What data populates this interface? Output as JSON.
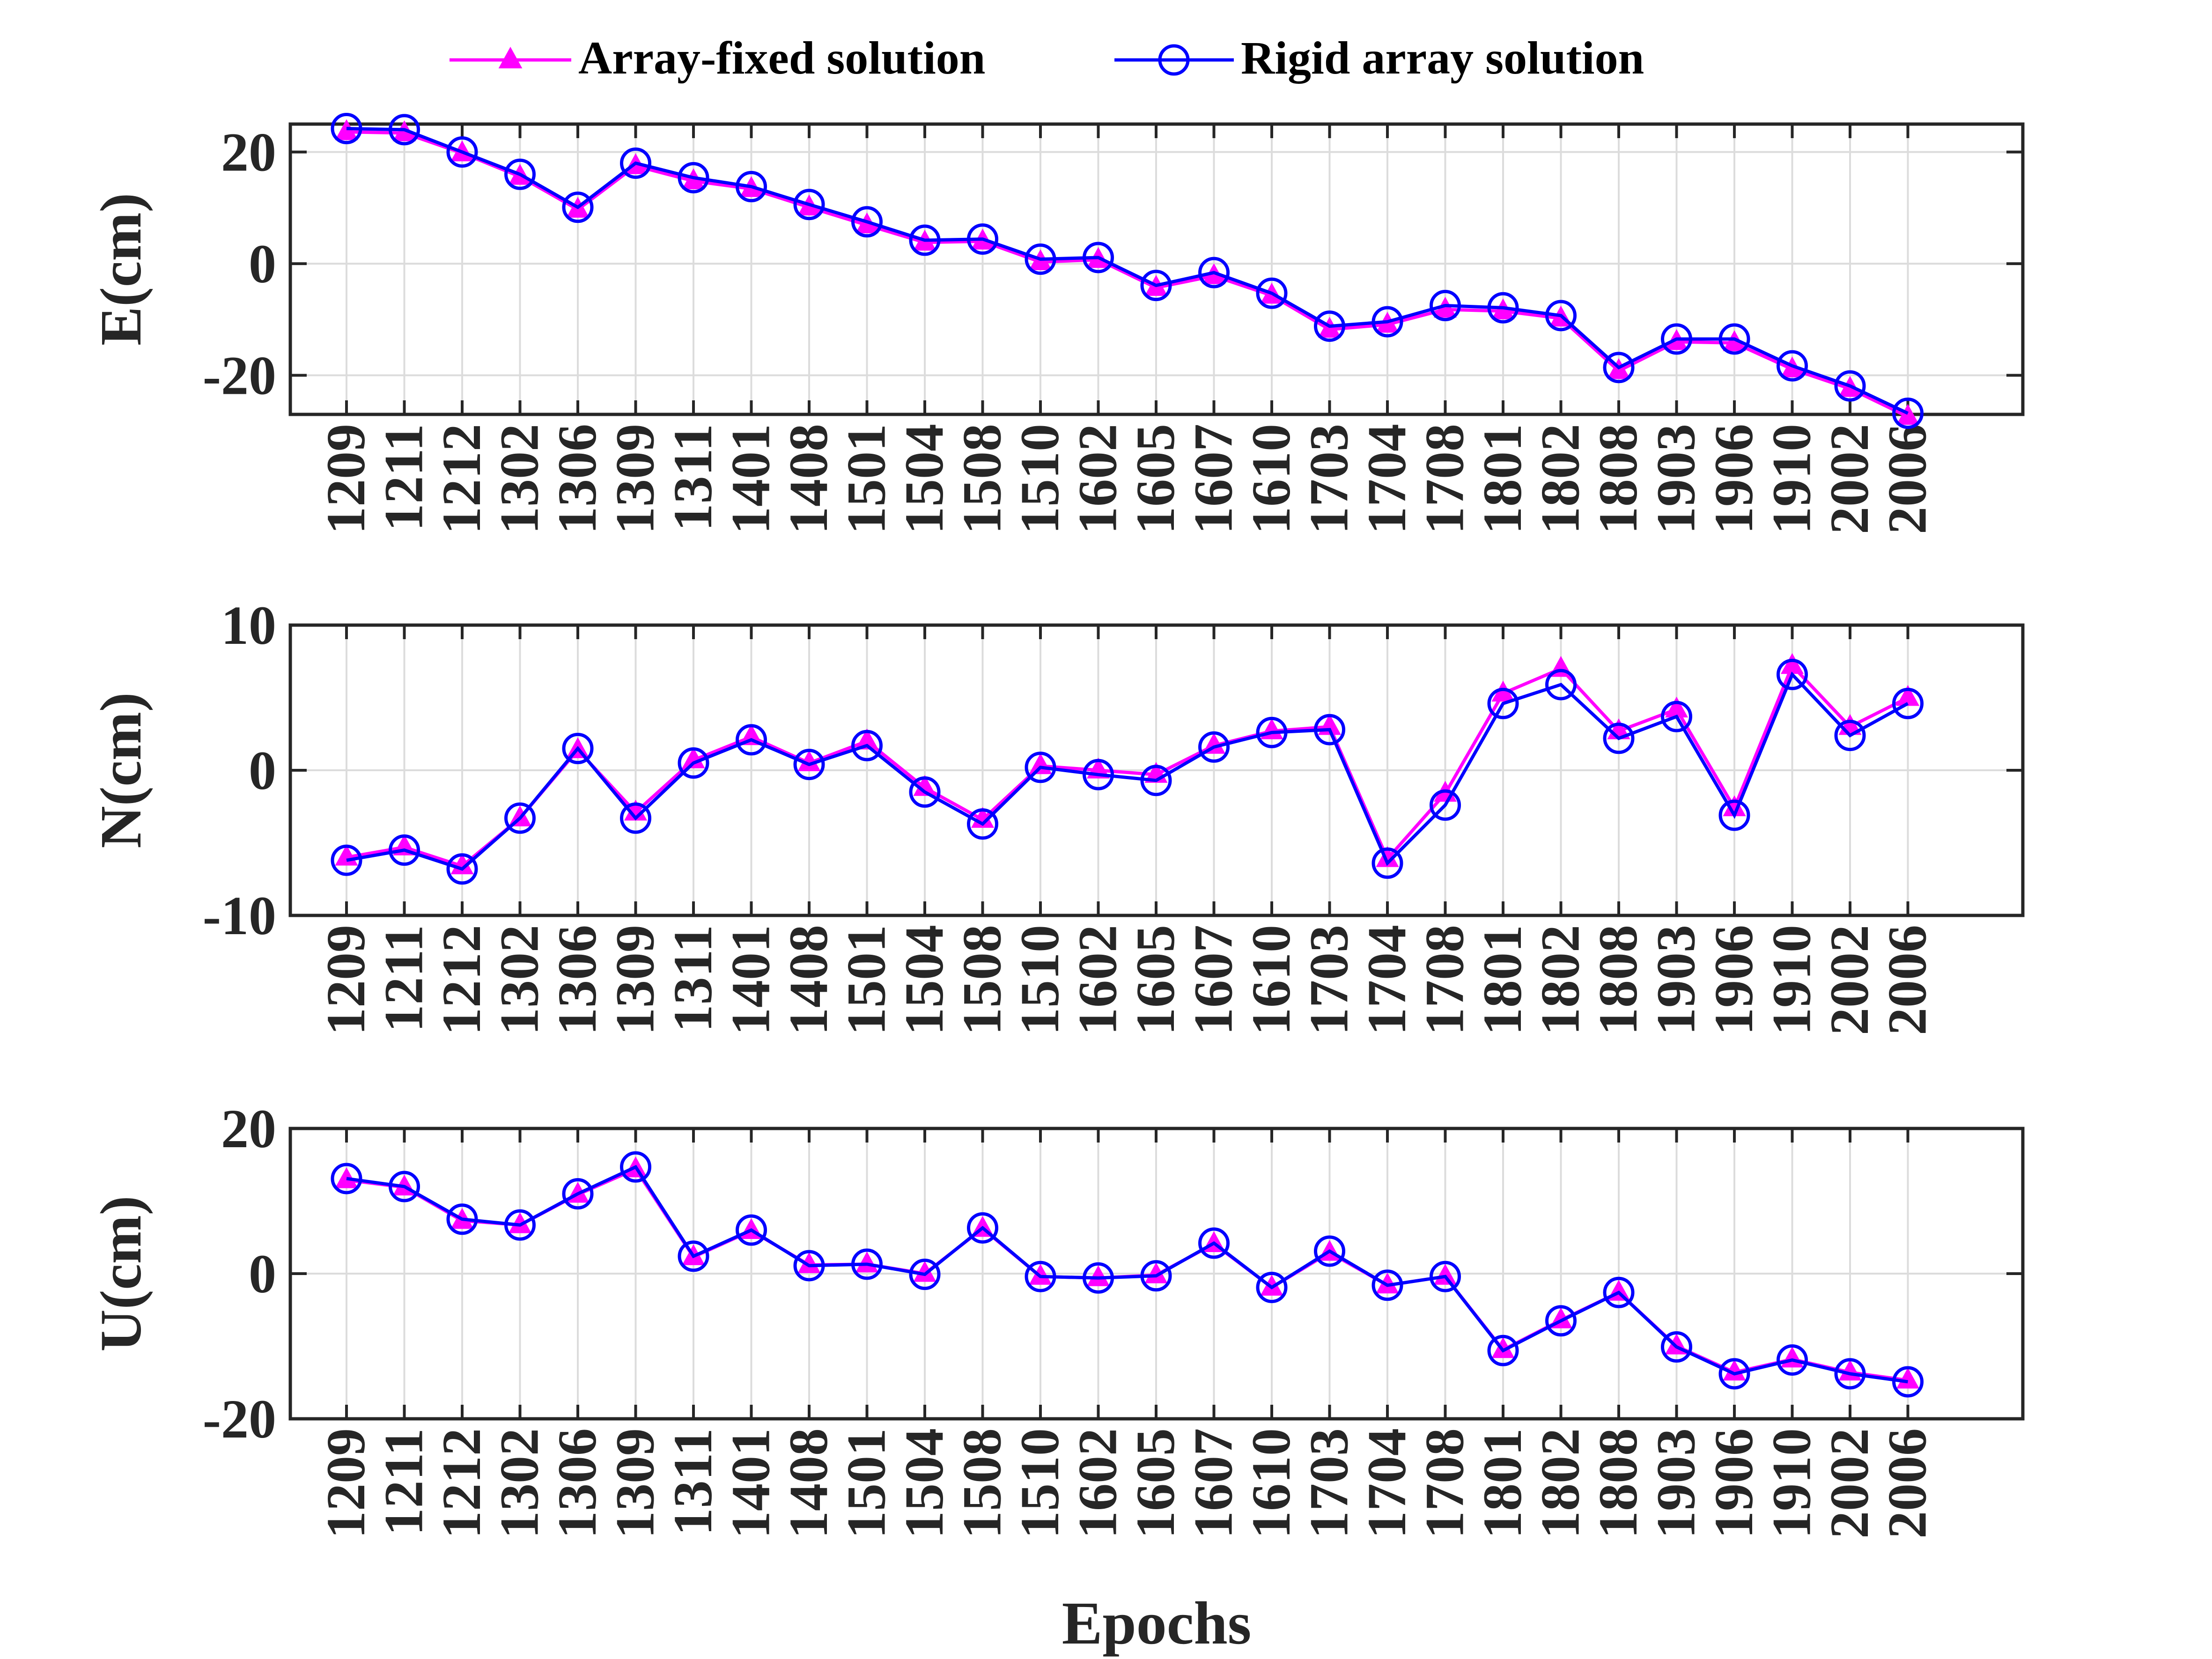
{
  "legend": {
    "array_fixed_label": "Array-fixed solution",
    "rigid_array_label": "Rigid array solution"
  },
  "colors": {
    "array_fixed": "#ff00ff",
    "rigid_array": "#0000ff",
    "axes": "#262626",
    "grid": "#dcdcdc"
  },
  "chart_data": [
    {
      "type": "line",
      "xlabel": "",
      "ylabel": "E(cm)",
      "categories": [
        "1209",
        "1211",
        "1212",
        "1302",
        "1306",
        "1309",
        "1311",
        "1401",
        "1408",
        "1501",
        "1504",
        "1508",
        "1510",
        "1602",
        "1605",
        "1607",
        "1610",
        "1703",
        "1704",
        "1708",
        "1801",
        "1802",
        "1808",
        "1903",
        "1906",
        "1910",
        "2002",
        "2006"
      ],
      "ylim": [
        -27,
        25
      ],
      "yticks": [
        -20,
        0,
        20
      ],
      "grid": true,
      "legend_position": "top-center",
      "series": [
        {
          "name": "Array-fixed solution",
          "marker": "triangle",
          "values": [
            23.6,
            23.4,
            19.8,
            15.6,
            9.7,
            17.5,
            14.8,
            13.4,
            10.1,
            6.9,
            3.8,
            4.0,
            0.3,
            0.7,
            -4.3,
            -2.2,
            -5.7,
            -11.8,
            -10.9,
            -8.2,
            -8.5,
            -9.8,
            -19.2,
            -14.0,
            -14.2,
            -18.9,
            -22.4,
            -27.4
          ]
        },
        {
          "name": "Rigid array solution",
          "marker": "circle",
          "values": [
            24.2,
            24.0,
            20.0,
            16.0,
            10.1,
            18.0,
            15.4,
            13.8,
            10.6,
            7.5,
            4.2,
            4.4,
            0.8,
            1.1,
            -3.9,
            -1.6,
            -5.3,
            -11.2,
            -10.4,
            -7.5,
            -7.9,
            -9.3,
            -18.6,
            -13.5,
            -13.5,
            -18.3,
            -21.9,
            -26.8
          ]
        }
      ]
    },
    {
      "type": "line",
      "xlabel": "",
      "ylabel": "N(cm)",
      "categories": [
        "1209",
        "1211",
        "1212",
        "1302",
        "1306",
        "1309",
        "1311",
        "1401",
        "1408",
        "1501",
        "1504",
        "1508",
        "1510",
        "1602",
        "1605",
        "1607",
        "1610",
        "1703",
        "1704",
        "1708",
        "1801",
        "1802",
        "1808",
        "1903",
        "1906",
        "1910",
        "2002",
        "2006"
      ],
      "ylim": [
        -10,
        10
      ],
      "yticks": [
        -10,
        0,
        10
      ],
      "grid": true,
      "series": [
        {
          "name": "Array-fixed solution",
          "marker": "triangle",
          "values": [
            -6.0,
            -5.3,
            -6.6,
            -3.3,
            1.4,
            -2.9,
            0.7,
            2.3,
            0.5,
            2.0,
            -1.2,
            -3.4,
            0.3,
            0.0,
            -0.3,
            1.7,
            2.7,
            3.0,
            -6.1,
            -1.6,
            5.3,
            7.0,
            2.7,
            4.2,
            -2.6,
            7.2,
            3.0,
            5.0
          ]
        },
        {
          "name": "Rigid array solution",
          "marker": "circle",
          "values": [
            -6.2,
            -5.5,
            -6.8,
            -3.3,
            1.5,
            -3.3,
            0.5,
            2.1,
            0.4,
            1.7,
            -1.5,
            -3.7,
            0.2,
            -0.3,
            -0.7,
            1.6,
            2.6,
            2.8,
            -6.4,
            -2.4,
            4.6,
            5.9,
            2.2,
            3.7,
            -3.1,
            6.6,
            2.4,
            4.6
          ]
        }
      ]
    },
    {
      "type": "line",
      "xlabel": "Epochs",
      "ylabel": "U(cm)",
      "categories": [
        "1209",
        "1211",
        "1212",
        "1302",
        "1306",
        "1309",
        "1311",
        "1401",
        "1408",
        "1501",
        "1504",
        "1508",
        "1510",
        "1602",
        "1605",
        "1607",
        "1610",
        "1703",
        "1704",
        "1708",
        "1801",
        "1802",
        "1808",
        "1903",
        "1906",
        "1910",
        "2002",
        "2006"
      ],
      "ylim": [
        -20,
        20
      ],
      "yticks": [
        -20,
        0,
        20
      ],
      "grid": true,
      "series": [
        {
          "name": "Array-fixed solution",
          "marker": "triangle",
          "values": [
            12.9,
            11.9,
            7.3,
            6.7,
            10.9,
            14.4,
            2.3,
            5.9,
            1.2,
            1.3,
            0.0,
            6.2,
            -0.4,
            -0.6,
            -0.2,
            4.1,
            -1.9,
            2.9,
            -1.6,
            -0.4,
            -10.5,
            -6.4,
            -2.6,
            -10.0,
            -13.6,
            -11.8,
            -13.6,
            -14.7
          ]
        },
        {
          "name": "Rigid array solution",
          "marker": "circle",
          "values": [
            13.1,
            12.0,
            7.5,
            6.7,
            11.0,
            14.7,
            2.4,
            6.0,
            1.1,
            1.3,
            -0.1,
            6.3,
            -0.4,
            -0.6,
            -0.3,
            4.2,
            -1.9,
            3.1,
            -1.6,
            -0.4,
            -10.6,
            -6.5,
            -2.6,
            -10.1,
            -13.8,
            -11.9,
            -13.8,
            -14.9
          ]
        }
      ]
    }
  ]
}
